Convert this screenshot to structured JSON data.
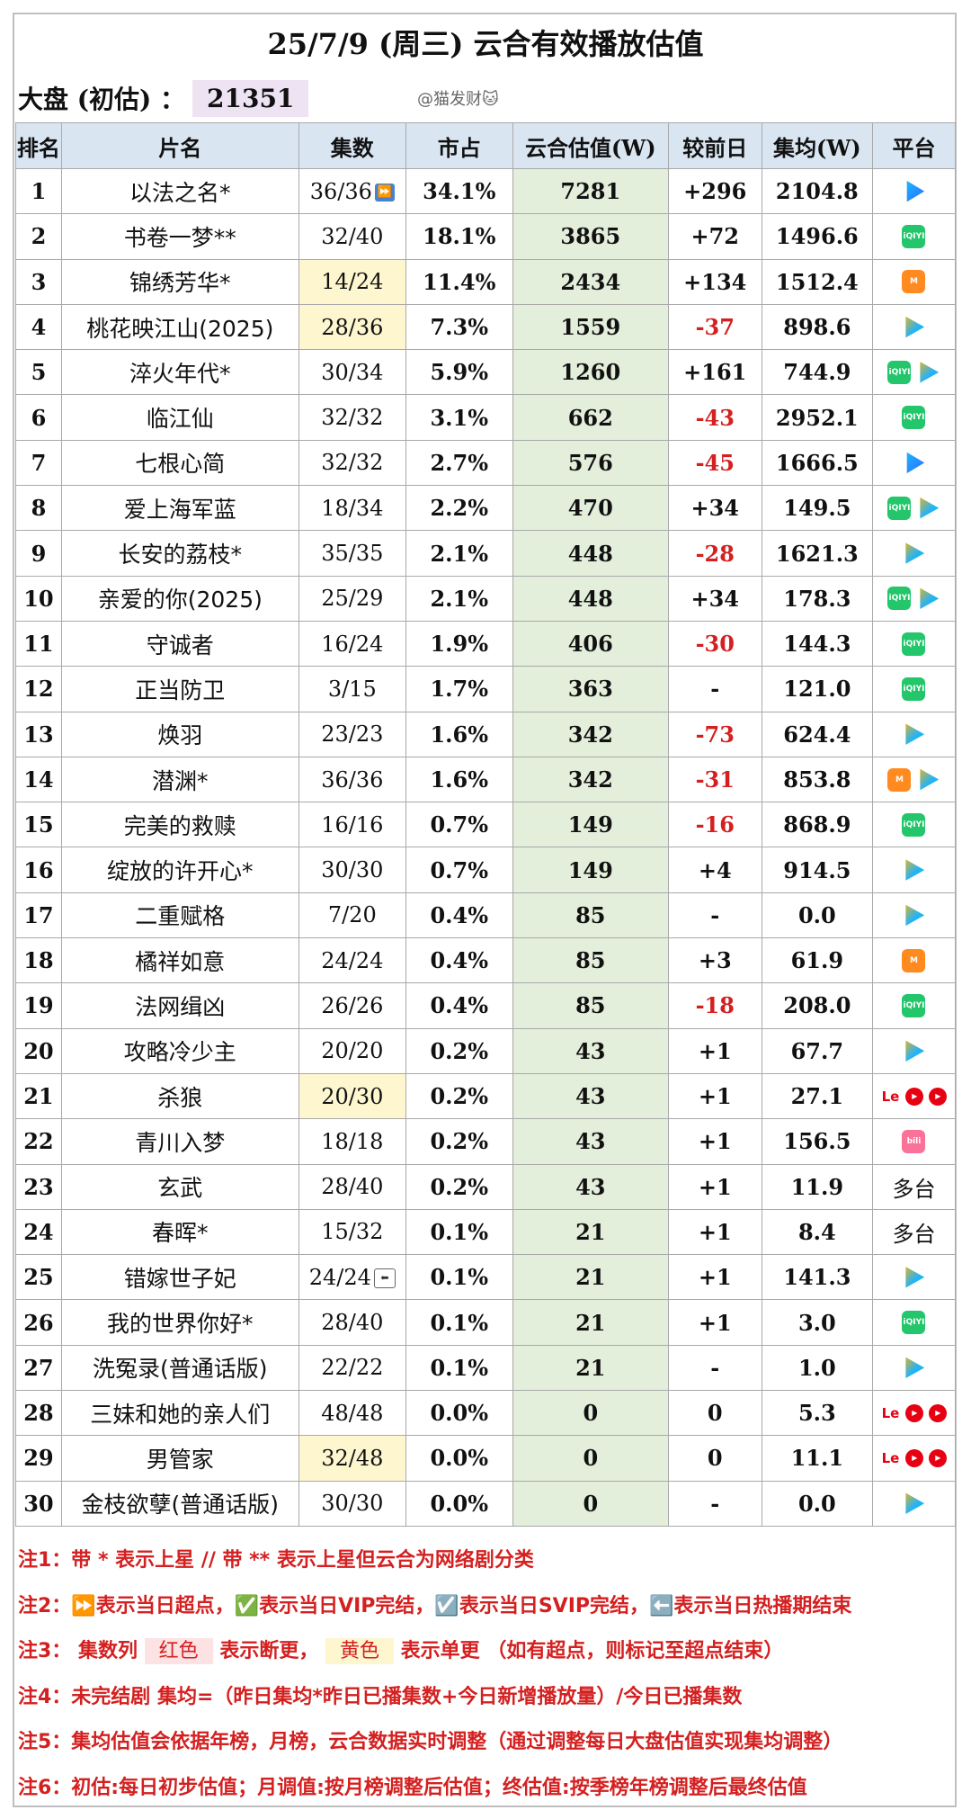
{
  "header": {
    "title": "25/7/9 (周三) 云合有效播放估值",
    "market_label": "大盘 (初估) ：",
    "market_value": "21351",
    "watermark": "@猫发财🐱"
  },
  "columns": [
    "排名",
    "片名",
    "集数",
    "市占",
    "云合估值(W)",
    "较前日",
    "集均(W)",
    "平台"
  ],
  "rows": [
    {
      "rank": "1",
      "name": "以法之名*",
      "ep": "36/36",
      "ep_icon": "super",
      "pct": "34.1%",
      "est": "7281",
      "diff": "+296",
      "avg": "2104.8",
      "plat": [
        "youku"
      ]
    },
    {
      "rank": "2",
      "name": "书卷一梦**",
      "ep": "32/40",
      "pct": "18.1%",
      "est": "3865",
      "diff": "+72",
      "avg": "1496.6",
      "plat": [
        "iqiyi"
      ]
    },
    {
      "rank": "3",
      "name": "锦绣芳华*",
      "ep": "14/24",
      "ep_hl": true,
      "pct": "11.4%",
      "est": "2434",
      "diff": "+134",
      "avg": "1512.4",
      "plat": [
        "mango"
      ]
    },
    {
      "rank": "4",
      "name": "桃花映江山(2025)",
      "ep": "28/36",
      "ep_hl": true,
      "pct": "7.3%",
      "est": "1559",
      "diff": "-37",
      "avg": "898.6",
      "plat": [
        "tencent"
      ]
    },
    {
      "rank": "5",
      "name": "淬火年代*",
      "ep": "30/34",
      "pct": "5.9%",
      "est": "1260",
      "diff": "+161",
      "avg": "744.9",
      "plat": [
        "iqiyi",
        "tencent"
      ]
    },
    {
      "rank": "6",
      "name": "临江仙",
      "ep": "32/32",
      "pct": "3.1%",
      "est": "662",
      "diff": "-43",
      "avg": "2952.1",
      "plat": [
        "iqiyi"
      ]
    },
    {
      "rank": "7",
      "name": "七根心简",
      "ep": "32/32",
      "pct": "2.7%",
      "est": "576",
      "diff": "-45",
      "avg": "1666.5",
      "plat": [
        "youku"
      ]
    },
    {
      "rank": "8",
      "name": "爱上海军蓝",
      "ep": "18/34",
      "pct": "2.2%",
      "est": "470",
      "diff": "+34",
      "avg": "149.5",
      "plat": [
        "iqiyi",
        "tencent"
      ]
    },
    {
      "rank": "9",
      "name": "长安的荔枝*",
      "ep": "35/35",
      "pct": "2.1%",
      "est": "448",
      "diff": "-28",
      "avg": "1621.3",
      "plat": [
        "tencent"
      ]
    },
    {
      "rank": "10",
      "name": "亲爱的你(2025)",
      "ep": "25/29",
      "pct": "2.1%",
      "est": "448",
      "diff": "+34",
      "avg": "178.3",
      "plat": [
        "iqiyi",
        "tencent"
      ]
    },
    {
      "rank": "11",
      "name": "守诚者",
      "ep": "16/24",
      "pct": "1.9%",
      "est": "406",
      "diff": "-30",
      "avg": "144.3",
      "plat": [
        "iqiyi"
      ]
    },
    {
      "rank": "12",
      "name": "正当防卫",
      "ep": "3/15",
      "pct": "1.7%",
      "est": "363",
      "diff": "-",
      "avg": "121.0",
      "plat": [
        "iqiyi"
      ]
    },
    {
      "rank": "13",
      "name": "焕羽",
      "ep": "23/23",
      "pct": "1.6%",
      "est": "342",
      "diff": "-73",
      "avg": "624.4",
      "plat": [
        "tencent"
      ]
    },
    {
      "rank": "14",
      "name": "潜渊*",
      "ep": "36/36",
      "pct": "1.6%",
      "est": "342",
      "diff": "-31",
      "avg": "853.8",
      "plat": [
        "mango",
        "tencent"
      ]
    },
    {
      "rank": "15",
      "name": "完美的救赎",
      "ep": "16/16",
      "pct": "0.7%",
      "est": "149",
      "diff": "-16",
      "avg": "868.9",
      "plat": [
        "iqiyi"
      ]
    },
    {
      "rank": "16",
      "name": "绽放的许开心*",
      "ep": "30/30",
      "pct": "0.7%",
      "est": "149",
      "diff": "+4",
      "avg": "914.5",
      "plat": [
        "tencent"
      ]
    },
    {
      "rank": "17",
      "name": "二重赋格",
      "ep": "7/20",
      "pct": "0.4%",
      "est": "85",
      "diff": "-",
      "avg": "0.0",
      "plat": [
        "tencent"
      ]
    },
    {
      "rank": "18",
      "name": "橘祥如意",
      "ep": "24/24",
      "pct": "0.4%",
      "est": "85",
      "diff": "+3",
      "avg": "61.9",
      "plat": [
        "mango"
      ]
    },
    {
      "rank": "19",
      "name": "法网缉凶",
      "ep": "26/26",
      "pct": "0.4%",
      "est": "85",
      "diff": "-18",
      "avg": "208.0",
      "plat": [
        "iqiyi"
      ]
    },
    {
      "rank": "20",
      "name": "攻略冷少主",
      "ep": "20/20",
      "pct": "0.2%",
      "est": "43",
      "diff": "+1",
      "avg": "67.7",
      "plat": [
        "tencent"
      ]
    },
    {
      "rank": "21",
      "name": "杀狼",
      "ep": "20/30",
      "ep_hl": true,
      "pct": "0.2%",
      "est": "43",
      "diff": "+1",
      "avg": "27.1",
      "plat": [
        "le",
        "circ",
        "circ"
      ]
    },
    {
      "rank": "22",
      "name": "青川入梦",
      "ep": "18/18",
      "pct": "0.2%",
      "est": "43",
      "diff": "+1",
      "avg": "156.5",
      "plat": [
        "bili"
      ]
    },
    {
      "rank": "23",
      "name": "玄武",
      "ep": "28/40",
      "pct": "0.2%",
      "est": "43",
      "diff": "+1",
      "avg": "11.9",
      "plat_text": "多台"
    },
    {
      "rank": "24",
      "name": "春晖*",
      "ep": "15/32",
      "pct": "0.1%",
      "est": "21",
      "diff": "+1",
      "avg": "8.4",
      "plat_text": "多台"
    },
    {
      "rank": "25",
      "name": "错嫁世子妃",
      "ep": "24/24",
      "ep_icon": "end",
      "pct": "0.1%",
      "est": "21",
      "diff": "+1",
      "avg": "141.3",
      "plat": [
        "tencent"
      ]
    },
    {
      "rank": "26",
      "name": "我的世界你好*",
      "ep": "28/40",
      "pct": "0.1%",
      "est": "21",
      "diff": "+1",
      "avg": "3.0",
      "plat": [
        "iqiyi"
      ]
    },
    {
      "rank": "27",
      "name": "洗冤录(普通话版)",
      "ep": "22/22",
      "pct": "0.1%",
      "est": "21",
      "diff": "-",
      "avg": "1.0",
      "plat": [
        "tencent"
      ]
    },
    {
      "rank": "28",
      "name": "三妹和她的亲人们",
      "ep": "48/48",
      "pct": "0.0%",
      "est": "0",
      "diff": "0",
      "avg": "5.3",
      "plat": [
        "le",
        "circ",
        "circ"
      ]
    },
    {
      "rank": "29",
      "name": "男管家",
      "ep": "32/48",
      "ep_hl": true,
      "pct": "0.0%",
      "est": "0",
      "diff": "0",
      "avg": "11.1",
      "plat": [
        "le",
        "circ",
        "circ"
      ]
    },
    {
      "rank": "30",
      "name": "金枝欲孽(普通话版)",
      "ep": "30/30",
      "pct": "0.0%",
      "est": "0",
      "diff": "-",
      "avg": "0.0",
      "plat": [
        "tencent"
      ]
    }
  ],
  "icons": {
    "super": "⏩",
    "end": "⬅"
  },
  "logos": {
    "youku": "",
    "iqiyi": "iQIYI",
    "mango": "M",
    "tencent": "",
    "bili": "bili",
    "le": "Le",
    "circ": "▶"
  },
  "notes": {
    "n1": "注1：带 * 表示上星 // 带 ** 表示上星但云合为网络剧分类",
    "n2": "注2：⏩表示当日超点，✅表示当日VIP完结，☑️表示当日SVIP完结，⬅️表示当日热播期结束",
    "n3_a": "注3：  集数列  ",
    "n3_red": "红色",
    "n3_b": " 表示断更，  ",
    "n3_yel": "黄色",
    "n3_c": " 表示单更 （如有超点，则标记至超点结束）",
    "n4": "注4：未完结剧 集均=（昨日集均*昨日已播集数+今日新增播放量）/今日已播集数",
    "n5": "注5：集均估值会依据年榜，月榜，云合数据实时调整（通过调整每日大盘估值实现集均调整）",
    "n6": "注6：初估:每日初步估值；月调值:按月榜调整后估值；终估值:按季榜年榜调整后最终估值"
  }
}
